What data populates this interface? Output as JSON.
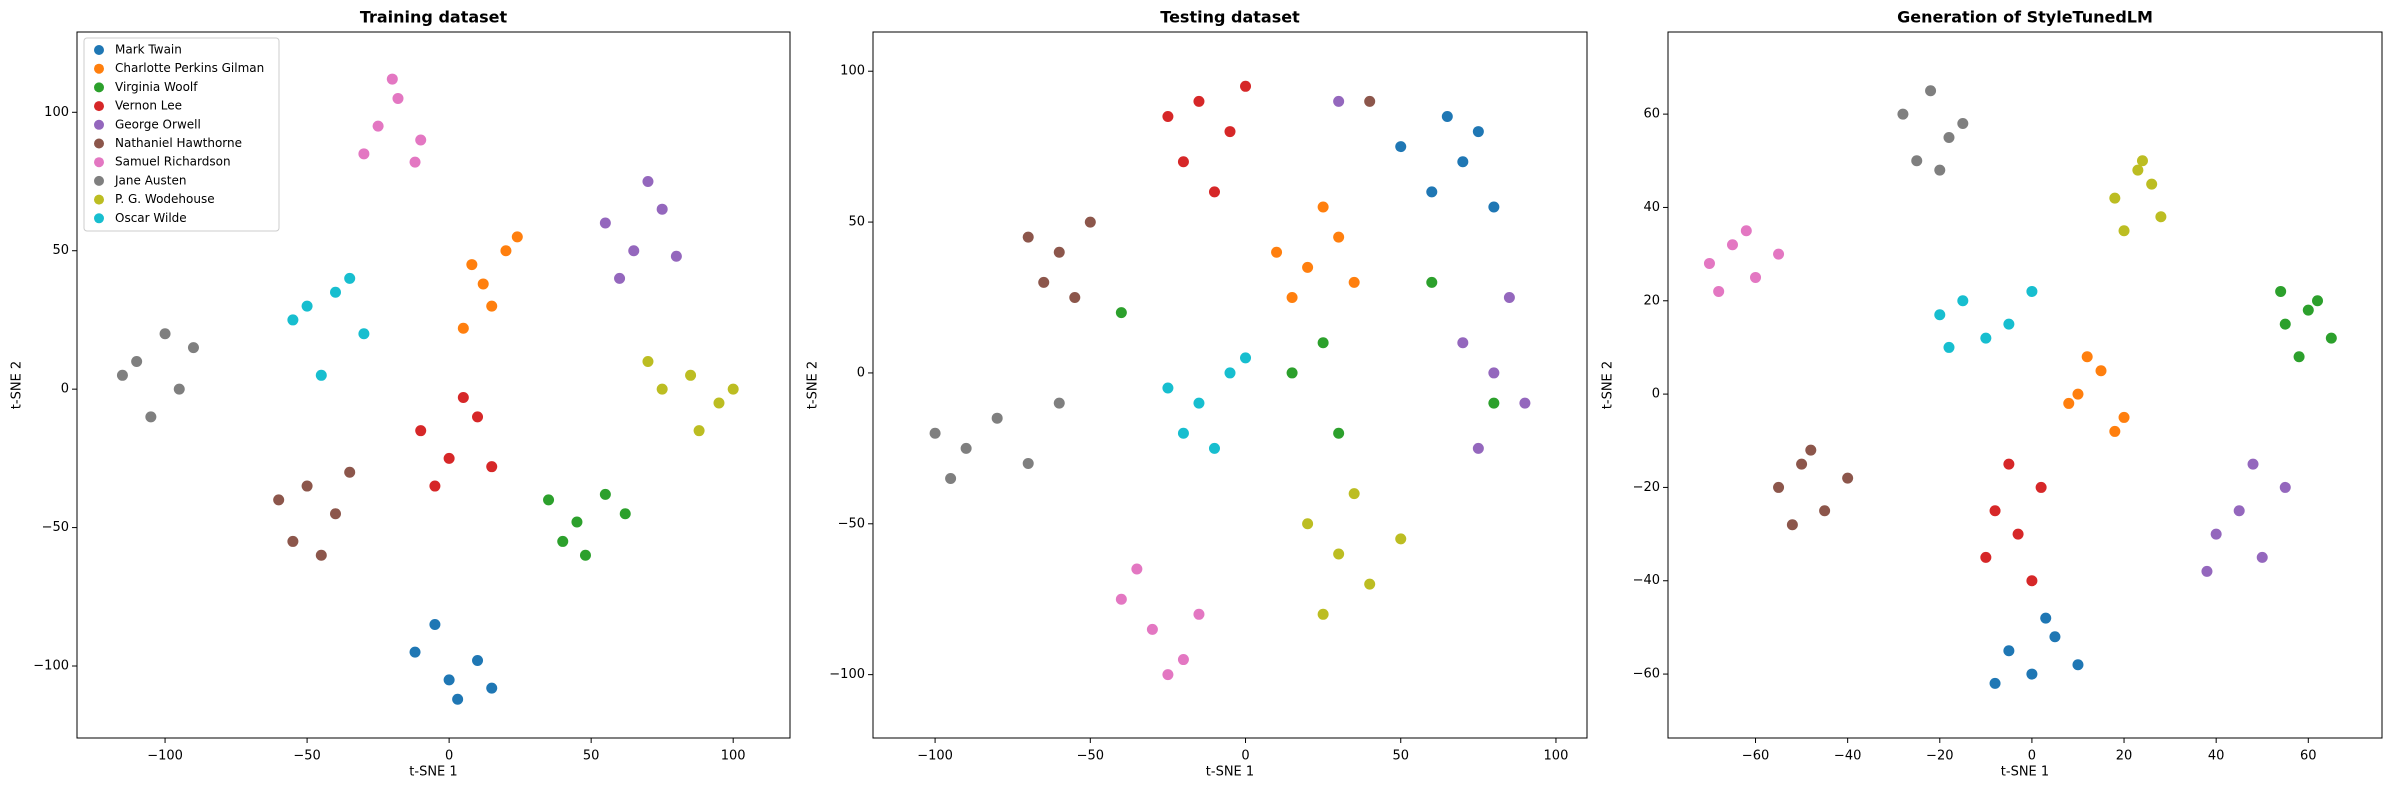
{
  "chart_data": [
    {
      "type": "scatter",
      "title": "Training dataset",
      "x_label": "t-SNE 1",
      "y_label": "t-SNE 2",
      "xlim": [
        -131,
        120
      ],
      "ylim": [
        -126,
        129
      ],
      "xticks": [
        {
          "value": -100,
          "label": "−100"
        },
        {
          "value": -50,
          "label": "−50"
        },
        0,
        50,
        100
      ],
      "yticks": [
        {
          "value": -100,
          "label": "−100"
        },
        {
          "value": -50,
          "label": "−50"
        },
        0,
        50,
        100
      ],
      "legend": "upper left",
      "series": [
        {
          "name": "Mark Twain",
          "color": "#1f77b4",
          "x": [
            -12,
            0,
            10,
            -5,
            15,
            3
          ],
          "y": [
            -95,
            -105,
            -98,
            -85,
            -108,
            -112
          ]
        },
        {
          "name": "Charlotte Perkins Gilman",
          "color": "#ff7f0e",
          "x": [
            8,
            15,
            20,
            5,
            12,
            24
          ],
          "y": [
            45,
            30,
            50,
            22,
            38,
            55
          ]
        },
        {
          "name": "Virginia Woolf",
          "color": "#2ca02c",
          "x": [
            35,
            45,
            55,
            40,
            62,
            48
          ],
          "y": [
            -40,
            -48,
            -38,
            -55,
            -45,
            -60
          ]
        },
        {
          "name": "Vernon Lee",
          "color": "#d62728",
          "x": [
            -10,
            0,
            10,
            -5,
            15,
            5
          ],
          "y": [
            -15,
            -25,
            -10,
            -35,
            -28,
            -3
          ]
        },
        {
          "name": "George Orwell",
          "color": "#9467bd",
          "x": [
            55,
            65,
            75,
            60,
            70,
            80
          ],
          "y": [
            60,
            50,
            65,
            40,
            75,
            48
          ]
        },
        {
          "name": "Nathaniel Hawthorne",
          "color": "#8c564b",
          "x": [
            -60,
            -50,
            -40,
            -55,
            -35,
            -45
          ],
          "y": [
            -40,
            -35,
            -45,
            -55,
            -30,
            -60
          ]
        },
        {
          "name": "Samuel Richardson",
          "color": "#e377c2",
          "x": [
            -25,
            -18,
            -10,
            -30,
            -20,
            -12
          ],
          "y": [
            95,
            105,
            90,
            85,
            112,
            82
          ]
        },
        {
          "name": "Jane Austen",
          "color": "#7f7f7f",
          "x": [
            -110,
            -100,
            -95,
            -115,
            -105,
            -90
          ],
          "y": [
            10,
            20,
            0,
            5,
            -10,
            15
          ]
        },
        {
          "name": "P. G. Wodehouse",
          "color": "#bcbd22",
          "x": [
            75,
            85,
            95,
            70,
            100,
            88
          ],
          "y": [
            0,
            5,
            -5,
            10,
            0,
            -15
          ]
        },
        {
          "name": "Oscar Wilde",
          "color": "#17becf",
          "x": [
            -50,
            -40,
            -30,
            -55,
            -45,
            -35
          ],
          "y": [
            30,
            35,
            20,
            25,
            5,
            40
          ]
        }
      ]
    },
    {
      "type": "scatter",
      "title": "Testing dataset",
      "x_label": "t-SNE 1",
      "y_label": "t-SNE 2",
      "xlim": [
        -120,
        110
      ],
      "ylim": [
        -121,
        113
      ],
      "xticks": [
        {
          "value": -100,
          "label": "−100"
        },
        {
          "value": -50,
          "label": "−50"
        },
        0,
        50,
        100
      ],
      "yticks": [
        {
          "value": -100,
          "label": "−100"
        },
        {
          "value": -50,
          "label": "−50"
        },
        0,
        50,
        100
      ],
      "series": [
        {
          "color": "#1f77b4",
          "x": [
            50,
            60,
            70,
            80,
            65,
            75
          ],
          "y": [
            75,
            60,
            70,
            55,
            85,
            80
          ]
        },
        {
          "color": "#ff7f0e",
          "x": [
            10,
            20,
            30,
            15,
            25,
            35
          ],
          "y": [
            40,
            35,
            45,
            25,
            55,
            30
          ]
        },
        {
          "color": "#2ca02c",
          "x": [
            15,
            30,
            60,
            -40,
            80,
            25
          ],
          "y": [
            0,
            -20,
            30,
            20,
            -10,
            10
          ]
        },
        {
          "color": "#d62728",
          "x": [
            -25,
            -15,
            -5,
            -20,
            -10,
            0
          ],
          "y": [
            85,
            90,
            80,
            70,
            60,
            95
          ]
        },
        {
          "color": "#9467bd",
          "x": [
            70,
            80,
            90,
            75,
            85,
            30
          ],
          "y": [
            10,
            0,
            -10,
            -25,
            25,
            90
          ]
        },
        {
          "color": "#8c564b",
          "x": [
            -70,
            -60,
            -50,
            -65,
            -55,
            40
          ],
          "y": [
            45,
            40,
            50,
            30,
            25,
            90
          ]
        },
        {
          "color": "#e377c2",
          "x": [
            -40,
            -30,
            -20,
            -25,
            -15,
            -35
          ],
          "y": [
            -75,
            -85,
            -95,
            -100,
            -80,
            -65
          ]
        },
        {
          "color": "#7f7f7f",
          "x": [
            -100,
            -90,
            -80,
            -95,
            -70,
            -60
          ],
          "y": [
            -20,
            -25,
            -15,
            -35,
            -30,
            -10
          ]
        },
        {
          "color": "#bcbd22",
          "x": [
            20,
            30,
            40,
            25,
            50,
            35
          ],
          "y": [
            -50,
            -60,
            -70,
            -80,
            -55,
            -40
          ]
        },
        {
          "color": "#17becf",
          "x": [
            -25,
            -15,
            -5,
            -20,
            0,
            -10
          ],
          "y": [
            -5,
            -10,
            0,
            -20,
            5,
            -25
          ]
        }
      ]
    },
    {
      "type": "scatter",
      "title": "Generation of StyleTunedLM",
      "x_label": "t-SNE 1",
      "y_label": "t-SNE 2",
      "xlim": [
        -79,
        76
      ],
      "ylim": [
        -73.7,
        77.6
      ],
      "xticks": [
        {
          "value": -60,
          "label": "−60"
        },
        {
          "value": -40,
          "label": "−40"
        },
        {
          "value": -20,
          "label": "−20"
        },
        0,
        20,
        40,
        60
      ],
      "yticks": [
        {
          "value": -60,
          "label": "−60"
        },
        {
          "value": -40,
          "label": "−40"
        },
        {
          "value": -20,
          "label": "−20"
        },
        0,
        20,
        40,
        60
      ],
      "series": [
        {
          "color": "#1f77b4",
          "x": [
            -5,
            0,
            5,
            10,
            -8,
            3
          ],
          "y": [
            -55,
            -60,
            -52,
            -58,
            -62,
            -48
          ]
        },
        {
          "color": "#ff7f0e",
          "x": [
            10,
            15,
            20,
            12,
            18,
            8
          ],
          "y": [
            0,
            5,
            -5,
            8,
            -8,
            -2
          ]
        },
        {
          "color": "#2ca02c",
          "x": [
            55,
            60,
            65,
            58,
            62,
            54
          ],
          "y": [
            15,
            18,
            12,
            8,
            20,
            22
          ]
        },
        {
          "color": "#d62728",
          "x": [
            -8,
            -3,
            2,
            -10,
            0,
            -5
          ],
          "y": [
            -25,
            -30,
            -20,
            -35,
            -40,
            -15
          ]
        },
        {
          "color": "#9467bd",
          "x": [
            40,
            45,
            50,
            55,
            38,
            48
          ],
          "y": [
            -30,
            -25,
            -35,
            -20,
            -38,
            -15
          ]
        },
        {
          "color": "#8c564b",
          "x": [
            -55,
            -50,
            -45,
            -40,
            -52,
            -48
          ],
          "y": [
            -20,
            -15,
            -25,
            -18,
            -28,
            -12
          ]
        },
        {
          "color": "#e377c2",
          "x": [
            -70,
            -65,
            -60,
            -55,
            -68,
            -62
          ],
          "y": [
            28,
            32,
            25,
            30,
            22,
            35
          ]
        },
        {
          "color": "#7f7f7f",
          "x": [
            -28,
            -22,
            -18,
            -25,
            -15,
            -20
          ],
          "y": [
            60,
            65,
            55,
            50,
            58,
            48
          ]
        },
        {
          "color": "#bcbd22",
          "x": [
            18,
            23,
            28,
            20,
            26,
            24
          ],
          "y": [
            42,
            48,
            38,
            35,
            45,
            50
          ]
        },
        {
          "color": "#17becf",
          "x": [
            -20,
            -15,
            -10,
            -5,
            -18,
            0
          ],
          "y": [
            17,
            20,
            12,
            15,
            10,
            22
          ]
        }
      ]
    }
  ]
}
